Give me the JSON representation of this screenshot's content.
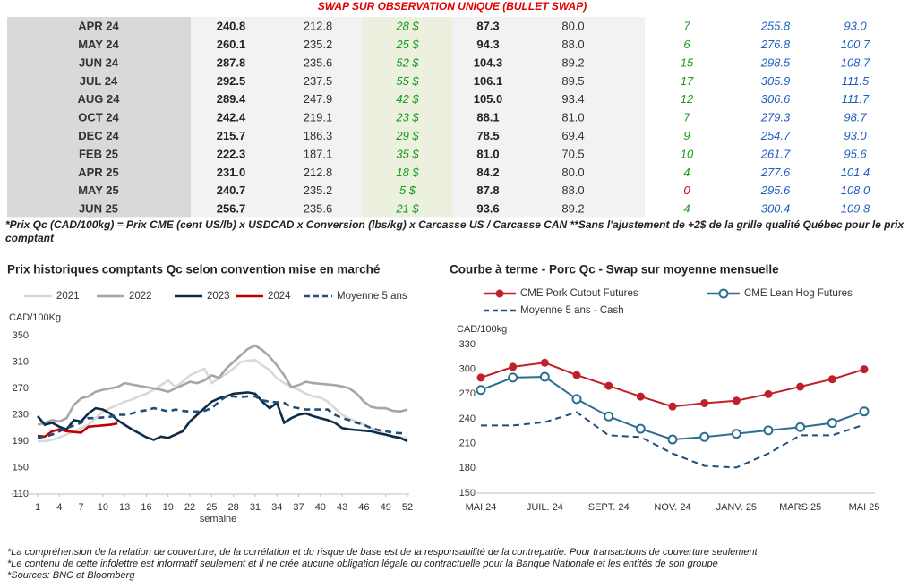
{
  "header": {
    "title": "SWAP SUR OBSERVATION UNIQUE (BULLET SWAP)"
  },
  "table": {
    "rows": [
      [
        "APR 24",
        "240.8",
        "212.8",
        "28 $",
        "87.3",
        "80.0",
        "7",
        "255.8",
        "93.0"
      ],
      [
        "MAY 24",
        "260.1",
        "235.2",
        "25 $",
        "94.3",
        "88.0",
        "6",
        "276.8",
        "100.7"
      ],
      [
        "JUN 24",
        "287.8",
        "235.6",
        "52 $",
        "104.3",
        "89.2",
        "15",
        "298.5",
        "108.7"
      ],
      [
        "JUL 24",
        "292.5",
        "237.5",
        "55 $",
        "106.1",
        "89.5",
        "17",
        "305.9",
        "111.5"
      ],
      [
        "AUG 24",
        "289.4",
        "247.9",
        "42 $",
        "105.0",
        "93.4",
        "12",
        "306.6",
        "111.7"
      ],
      [
        "OCT 24",
        "242.4",
        "219.1",
        "23 $",
        "88.1",
        "81.0",
        "7",
        "279.3",
        "98.7"
      ],
      [
        "DEC 24",
        "215.7",
        "186.3",
        "29 $",
        "78.5",
        "69.4",
        "9",
        "254.7",
        "93.0"
      ],
      [
        "FEB 25",
        "222.3",
        "187.1",
        "35 $",
        "81.0",
        "70.5",
        "10",
        "261.7",
        "95.6"
      ],
      [
        "APR 25",
        "231.0",
        "212.8",
        "18 $",
        "84.2",
        "80.0",
        "4",
        "277.6",
        "101.4"
      ],
      [
        "MAY 25",
        "240.7",
        "235.2",
        "5 $",
        "87.8",
        "88.0",
        "0",
        "295.6",
        "108.0"
      ],
      [
        "JUN 25",
        "256.7",
        "235.6",
        "21 $",
        "93.6",
        "89.2",
        "4",
        "300.4",
        "109.8"
      ]
    ]
  },
  "footnote": "*Prix Qc (CAD/100kg) = Prix CME (cent US/lb) x USDCAD x Conversion (lbs/kg) x Carcasse US / Carcasse CAN **Sans l'ajustement de +2$ de la grille qualité Québec pour le prix comptant",
  "chart_data": [
    {
      "type": "line",
      "title": "Prix historiques comptants Qc selon convention mise en marché",
      "y_label": "CAD/100Kg",
      "x_label": "semaine",
      "x": [
        1,
        2,
        3,
        4,
        5,
        6,
        7,
        8,
        9,
        10,
        11,
        12,
        13,
        14,
        15,
        16,
        17,
        18,
        19,
        20,
        21,
        22,
        23,
        24,
        25,
        26,
        27,
        28,
        29,
        30,
        31,
        32,
        33,
        34,
        35,
        36,
        37,
        38,
        39,
        40,
        41,
        42,
        43,
        44,
        45,
        46,
        47,
        48,
        49,
        50,
        51,
        52
      ],
      "xlim": [
        1,
        52
      ],
      "xticks": [
        1,
        4,
        7,
        10,
        13,
        16,
        19,
        22,
        25,
        28,
        31,
        34,
        37,
        40,
        43,
        46,
        49,
        52
      ],
      "ylim": [
        110,
        350
      ],
      "yticks": [
        110,
        150,
        190,
        230,
        270,
        310,
        350
      ],
      "series": [
        {
          "name": "2021",
          "color": "#d9d9d9",
          "dashed": false,
          "values": [
            190,
            190,
            192,
            196,
            200,
            205,
            210,
            215,
            225,
            235,
            240,
            245,
            250,
            253,
            258,
            262,
            268,
            275,
            282,
            272,
            280,
            290,
            295,
            300,
            278,
            285,
            292,
            300,
            310,
            312,
            313,
            305,
            298,
            285,
            278,
            272,
            268,
            262,
            258,
            256,
            250,
            240,
            230,
            224,
            220,
            215,
            210,
            206,
            200,
            198,
            196,
            195
          ]
        },
        {
          "name": "2022",
          "color": "#a6a6a6",
          "dashed": false,
          "values": [
            215,
            218,
            222,
            220,
            225,
            245,
            255,
            258,
            265,
            268,
            270,
            272,
            278,
            276,
            274,
            272,
            270,
            268,
            265,
            270,
            275,
            280,
            278,
            282,
            290,
            286,
            300,
            310,
            320,
            330,
            335,
            328,
            318,
            305,
            290,
            272,
            275,
            280,
            278,
            277,
            276,
            275,
            273,
            270,
            262,
            250,
            242,
            240,
            240,
            236,
            235,
            238
          ]
        },
        {
          "name": "2023",
          "color": "#0f2c47",
          "dashed": false,
          "values": [
            228,
            215,
            218,
            212,
            208,
            222,
            220,
            232,
            240,
            238,
            232,
            222,
            215,
            208,
            202,
            196,
            192,
            197,
            195,
            200,
            205,
            220,
            230,
            240,
            250,
            255,
            258,
            262,
            263,
            264,
            262,
            250,
            240,
            248,
            218,
            225,
            230,
            232,
            228,
            225,
            222,
            218,
            210,
            208,
            207,
            206,
            205,
            202,
            200,
            197,
            195,
            190
          ]
        },
        {
          "name": "2024",
          "color": "#c00000",
          "dashed": false,
          "values": [
            198,
            197,
            205,
            208,
            205,
            204,
            203,
            212,
            213,
            214,
            215,
            217,
            null,
            null,
            null,
            null,
            null,
            null,
            null,
            null,
            null,
            null,
            null,
            null,
            null,
            null,
            null,
            null,
            null,
            null,
            null,
            null,
            null,
            null,
            null,
            null,
            null,
            null,
            null,
            null,
            null,
            null,
            null,
            null,
            null,
            null,
            null,
            null,
            null,
            null,
            null,
            null
          ]
        },
        {
          "name": "Moyenne 5 ans",
          "color": "#1f4e79",
          "dashed": true,
          "values": [
            195,
            197,
            200,
            205,
            210,
            214,
            218,
            225,
            225,
            226,
            227,
            230,
            230,
            232,
            235,
            237,
            240,
            238,
            235,
            238,
            236,
            235,
            235,
            236,
            240,
            250,
            258,
            258,
            257,
            258,
            258,
            252,
            250,
            249,
            248,
            242,
            240,
            238,
            238,
            238,
            238,
            230,
            225,
            222,
            218,
            215,
            210,
            207,
            205,
            203,
            202,
            202
          ]
        }
      ]
    },
    {
      "type": "line",
      "title": "Courbe à terme - Porc Qc - Swap sur moyenne mensuelle",
      "y_label": "CAD/100kg",
      "categories": [
        "MAI 24",
        null,
        "JUIL. 24",
        null,
        "SEPT. 24",
        null,
        "NOV. 24",
        null,
        "JANV. 25",
        null,
        "MARS 25",
        null,
        "MAI 25"
      ],
      "ylim": [
        150,
        330
      ],
      "yticks": [
        150,
        180,
        210,
        240,
        270,
        300,
        330
      ],
      "series": [
        {
          "name": "CME Pork Cutout Futures",
          "color": "#c0202a",
          "dashed": false,
          "marker": "filled",
          "values": [
            290,
            303,
            308,
            293,
            280,
            267,
            255,
            259,
            262,
            270,
            279,
            288,
            300
          ]
        },
        {
          "name": "CME Lean Hog Futures",
          "color": "#2a6f8f",
          "dashed": false,
          "marker": "open",
          "values": [
            275,
            290,
            291,
            264,
            243,
            228,
            215,
            218,
            222,
            226,
            230,
            235,
            249
          ]
        },
        {
          "name": "Moyenne 5 ans - Cash",
          "color": "#1f4e79",
          "dashed": true,
          "marker": "none",
          "values": [
            232,
            232,
            236,
            248,
            220,
            218,
            198,
            183,
            181,
            198,
            220,
            220,
            233
          ]
        }
      ]
    }
  ],
  "footer": [
    "*La compréhension de la relation de couverture, de la corrélation et du risque de base est de la responsabilité de la contrepartie. Pour transactions de couverture seulement",
    "*Le contenu de cette infolettre est informatif seulement et il ne crée aucune obligation légale ou contractuelle pour la Banque Nationale et les entités de son groupe",
    "*Sources: BNC et Bloomberg"
  ]
}
